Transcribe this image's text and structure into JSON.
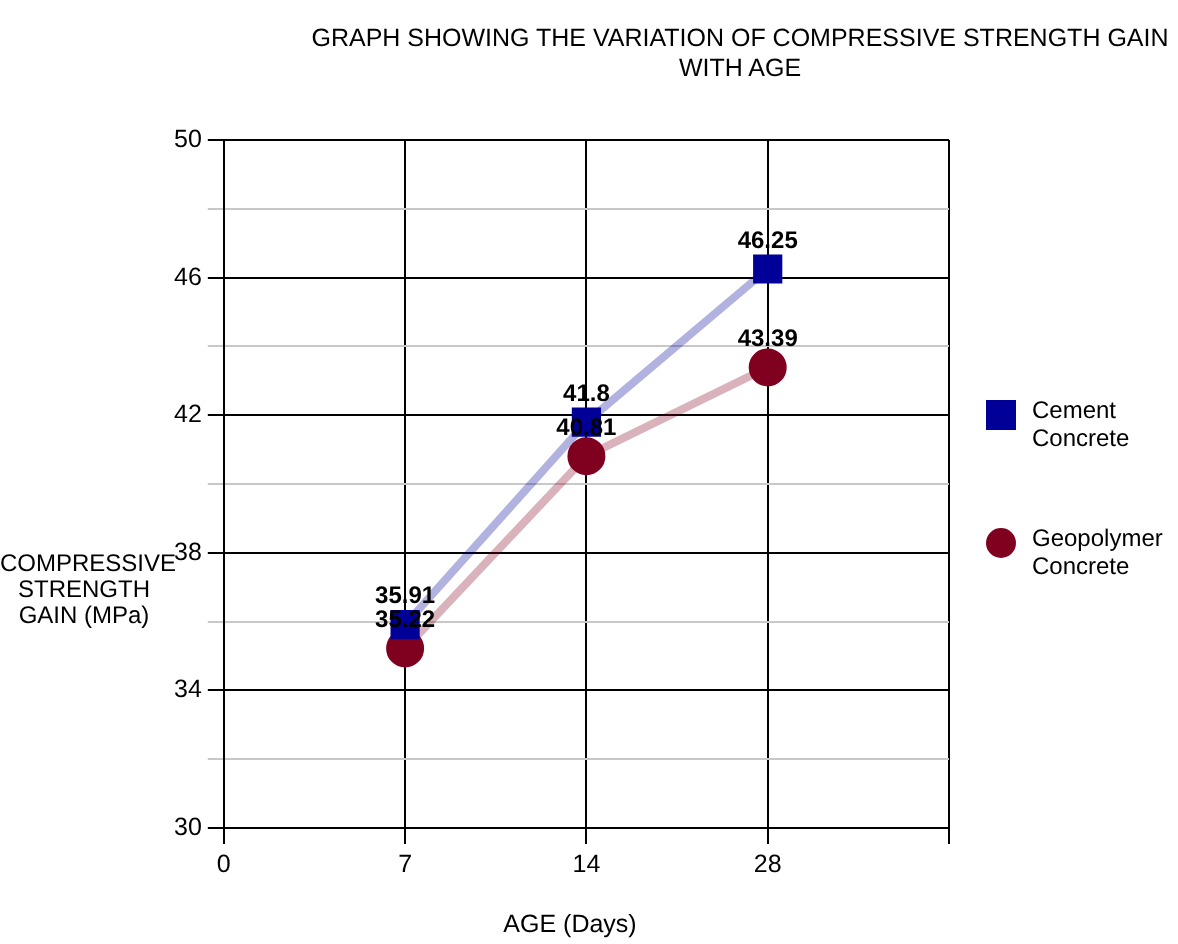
{
  "chart_data": {
    "type": "line",
    "title": "GRAPH SHOWING THE VARIATION OF COMPRESSIVE STRENGTH GAIN WITH AGE",
    "xlabel": "AGE (Days)",
    "ylabel": "COMPRESSIVE STRENGTH GAIN (MPa)",
    "categories": [
      "0",
      "7",
      "14",
      "28",
      null
    ],
    "series": [
      {
        "name": "Cement Concrete",
        "color": "#000099",
        "marker": "square",
        "values": [
          null,
          35.91,
          41.8,
          46.25,
          null
        ]
      },
      {
        "name": "Geopolymer Concrete",
        "color": "#800020",
        "marker": "circle",
        "values": [
          null,
          35.22,
          40.81,
          43.39,
          null
        ]
      }
    ],
    "ylim": [
      30,
      50
    ],
    "yticks": [
      30,
      {
        "value": 32,
        "label": null
      },
      34,
      {
        "value": 36,
        "label": null
      },
      38,
      {
        "value": 40,
        "label": null
      },
      42,
      {
        "value": 44,
        "label": null
      },
      46,
      {
        "value": 48,
        "label": null
      },
      50
    ],
    "grid": true,
    "legend": "right",
    "data_labels": true,
    "line_style": "solid"
  }
}
